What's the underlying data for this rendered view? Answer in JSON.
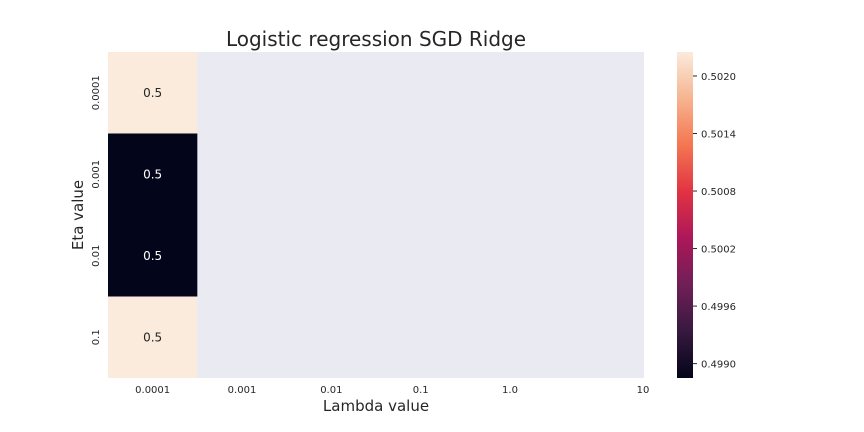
{
  "chart_data": {
    "type": "heatmap",
    "title": "Logistic regression SGD Ridge",
    "xlabel": "Lambda value",
    "ylabel": "Eta value",
    "x_categories": [
      "0.0001",
      "0.001",
      "0.01",
      "0.1",
      "1.0",
      "10"
    ],
    "y_categories": [
      "0.0001",
      "0.001",
      "0.01",
      "0.1"
    ],
    "values": [
      [
        0.50225,
        null,
        null,
        null,
        null,
        null
      ],
      [
        0.49885,
        null,
        null,
        null,
        null,
        null
      ],
      [
        0.49885,
        null,
        null,
        null,
        null,
        null
      ],
      [
        0.50225,
        null,
        null,
        null,
        null,
        null
      ]
    ],
    "annotations": [
      [
        "0.5",
        "",
        "",
        "",
        "",
        ""
      ],
      [
        "0.5",
        "",
        "",
        "",
        "",
        ""
      ],
      [
        "0.5",
        "",
        "",
        "",
        "",
        ""
      ],
      [
        "0.5",
        "",
        "",
        "",
        "",
        ""
      ]
    ],
    "colorbar": {
      "min": 0.49885,
      "max": 0.50225,
      "ticks": [
        0.499,
        0.4996,
        0.5002,
        0.5008,
        0.5014,
        0.502
      ],
      "tick_labels": [
        "0.4990",
        "0.4996",
        "0.5002",
        "0.5008",
        "0.5014",
        "0.5020"
      ]
    },
    "missing_color": "#eaeaf2",
    "colormap": [
      "#03051a",
      "#36193e",
      "#701f57",
      "#ad1759",
      "#e13342",
      "#f37651",
      "#f6b48f",
      "#faebdd"
    ]
  }
}
